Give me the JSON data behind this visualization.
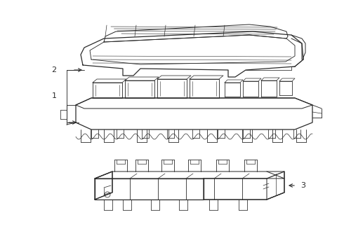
{
  "background_color": "#ffffff",
  "line_color": "#2a2a2a",
  "line_width": 0.8,
  "fig_width": 4.9,
  "fig_height": 3.6,
  "dpi": 100
}
